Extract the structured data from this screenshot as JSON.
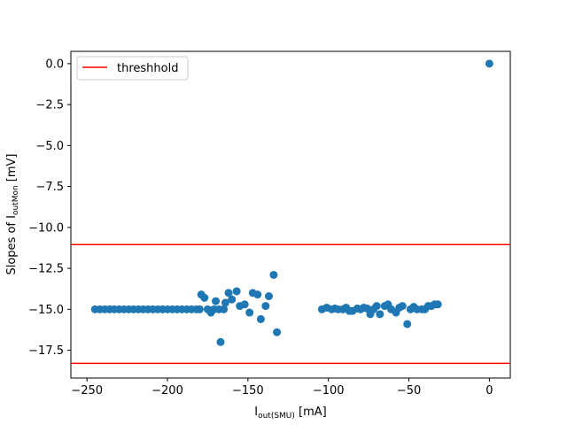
{
  "chart_data": {
    "type": "scatter",
    "title": "",
    "xlabel": {
      "main": "I",
      "sub": "out(SMU)",
      "unit": " [mA]"
    },
    "ylabel": {
      "prefix": "Slopes of ",
      "main": "I",
      "sub": "outMon",
      "unit": " [mV]"
    },
    "xlim": [
      -260,
      13
    ],
    "ylim": [
      -19.2,
      0.75
    ],
    "xticks": [
      -250,
      -200,
      -150,
      -100,
      -50,
      0
    ],
    "xtick_labels": [
      "−250",
      "−200",
      "−150",
      "−100",
      "−50",
      "0"
    ],
    "yticks": [
      0.0,
      -2.5,
      -5.0,
      -7.5,
      -10.0,
      -12.5,
      -15.0,
      -17.5
    ],
    "ytick_labels": [
      "0.0",
      "−2.5",
      "−5.0",
      "−7.5",
      "−10.0",
      "−12.5",
      "−15.0",
      "−17.5"
    ],
    "grid": false,
    "legend": {
      "position": "upper-left",
      "entries": [
        {
          "label": "threshhold",
          "color": "#ff0000"
        }
      ]
    },
    "threshold_lines": [
      -11.05,
      -18.3
    ],
    "series": [
      {
        "color": "#1f77b4",
        "points": [
          [
            -245,
            -15.0
          ],
          [
            -242,
            -15.0
          ],
          [
            -239,
            -15.0
          ],
          [
            -236,
            -15.0
          ],
          [
            -233,
            -15.0
          ],
          [
            -230,
            -15.0
          ],
          [
            -227,
            -15.0
          ],
          [
            -224,
            -15.0
          ],
          [
            -221,
            -15.0
          ],
          [
            -218,
            -15.0
          ],
          [
            -215,
            -15.0
          ],
          [
            -212,
            -15.0
          ],
          [
            -209,
            -15.0
          ],
          [
            -206,
            -15.0
          ],
          [
            -203,
            -15.0
          ],
          [
            -200,
            -15.0
          ],
          [
            -197,
            -15.0
          ],
          [
            -194,
            -15.0
          ],
          [
            -191,
            -15.0
          ],
          [
            -188,
            -15.0
          ],
          [
            -185,
            -15.0
          ],
          [
            -182,
            -15.0
          ],
          [
            -180,
            -15.0
          ],
          [
            -179,
            -14.1
          ],
          [
            -177,
            -14.3
          ],
          [
            -175,
            -15.0
          ],
          [
            -173,
            -15.2
          ],
          [
            -171,
            -15.0
          ],
          [
            -170,
            -14.5
          ],
          [
            -168,
            -15.0
          ],
          [
            -167,
            -17.0
          ],
          [
            -165,
            -15.0
          ],
          [
            -164,
            -14.6
          ],
          [
            -162,
            -14.0
          ],
          [
            -160,
            -14.4
          ],
          [
            -157,
            -13.9
          ],
          [
            -155,
            -14.8
          ],
          [
            -152,
            -14.7
          ],
          [
            -149,
            -15.2
          ],
          [
            -147,
            -14.0
          ],
          [
            -144,
            -14.1
          ],
          [
            -142,
            -15.6
          ],
          [
            -139,
            -14.8
          ],
          [
            -137,
            -14.2
          ],
          [
            -134,
            -12.9
          ],
          [
            -132,
            -16.4
          ],
          [
            -104,
            -15.0
          ],
          [
            -101,
            -14.9
          ],
          [
            -98,
            -15.0
          ],
          [
            -96,
            -14.95
          ],
          [
            -94,
            -15.0
          ],
          [
            -91,
            -15.0
          ],
          [
            -89,
            -14.9
          ],
          [
            -87,
            -15.1
          ],
          [
            -85,
            -15.1
          ],
          [
            -82,
            -14.95
          ],
          [
            -80,
            -15.0
          ],
          [
            -78,
            -14.9
          ],
          [
            -76,
            -14.95
          ],
          [
            -74,
            -15.3
          ],
          [
            -72,
            -15.0
          ],
          [
            -70,
            -14.8
          ],
          [
            -68,
            -15.3
          ],
          [
            -65,
            -14.8
          ],
          [
            -63,
            -14.7
          ],
          [
            -61,
            -15.0
          ],
          [
            -58,
            -15.2
          ],
          [
            -56,
            -14.9
          ],
          [
            -54,
            -14.8
          ],
          [
            -51,
            -15.9
          ],
          [
            -49,
            -15.0
          ],
          [
            -47,
            -14.85
          ],
          [
            -45,
            -15.0
          ],
          [
            -42,
            -15.0
          ],
          [
            -40,
            -15.0
          ],
          [
            -38,
            -14.8
          ],
          [
            -36,
            -14.8
          ],
          [
            -34,
            -14.7
          ],
          [
            -32,
            -14.7
          ],
          [
            0,
            0.0
          ]
        ]
      }
    ]
  }
}
